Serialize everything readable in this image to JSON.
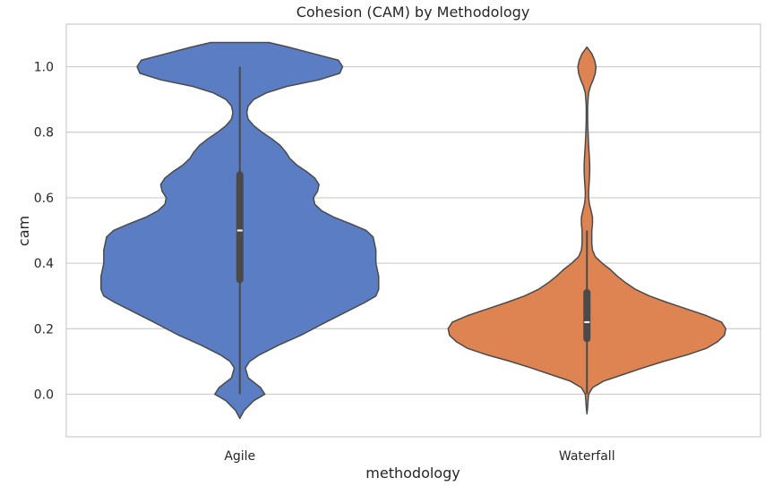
{
  "chart_data": {
    "type": "violin",
    "title": "Cohesion (CAM) by Methodology",
    "xlabel": "methodology",
    "ylabel": "cam",
    "categories": [
      "Agile",
      "Waterfall"
    ],
    "ylim": [
      -0.13,
      1.13
    ],
    "yticks": [
      0.0,
      0.2,
      0.4,
      0.6,
      0.8,
      1.0
    ],
    "ytick_labels": [
      "0.0",
      "0.2",
      "0.4",
      "0.6",
      "0.8",
      "1.0"
    ],
    "grid": "horizontal",
    "series": [
      {
        "category": "Agile",
        "color": "#5a7dc3",
        "y_min_extent": -0.074,
        "y_max_extent": 1.074,
        "whisker": [
          0.0,
          1.0
        ],
        "q1": 0.35,
        "median": 0.5,
        "q3": 0.67,
        "density": [
          [
            -0.074,
            0.0
          ],
          [
            -0.05,
            0.03
          ],
          [
            -0.02,
            0.1
          ],
          [
            0.0,
            0.18
          ],
          [
            0.02,
            0.15
          ],
          [
            0.05,
            0.06
          ],
          [
            0.08,
            0.04
          ],
          [
            0.1,
            0.07
          ],
          [
            0.12,
            0.14
          ],
          [
            0.15,
            0.28
          ],
          [
            0.18,
            0.44
          ],
          [
            0.2,
            0.53
          ],
          [
            0.22,
            0.62
          ],
          [
            0.25,
            0.76
          ],
          [
            0.28,
            0.9
          ],
          [
            0.3,
            0.98
          ],
          [
            0.32,
            1.0
          ],
          [
            0.34,
            1.0
          ],
          [
            0.36,
            1.0
          ],
          [
            0.38,
            0.99
          ],
          [
            0.4,
            0.98
          ],
          [
            0.42,
            0.98
          ],
          [
            0.44,
            0.98
          ],
          [
            0.46,
            0.97
          ],
          [
            0.48,
            0.96
          ],
          [
            0.5,
            0.91
          ],
          [
            0.52,
            0.8
          ],
          [
            0.54,
            0.68
          ],
          [
            0.56,
            0.59
          ],
          [
            0.58,
            0.54
          ],
          [
            0.6,
            0.53
          ],
          [
            0.62,
            0.56
          ],
          [
            0.64,
            0.57
          ],
          [
            0.66,
            0.54
          ],
          [
            0.68,
            0.48
          ],
          [
            0.7,
            0.41
          ],
          [
            0.72,
            0.36
          ],
          [
            0.74,
            0.33
          ],
          [
            0.76,
            0.29
          ],
          [
            0.78,
            0.23
          ],
          [
            0.8,
            0.16
          ],
          [
            0.82,
            0.1
          ],
          [
            0.84,
            0.06
          ],
          [
            0.86,
            0.05
          ],
          [
            0.88,
            0.06
          ],
          [
            0.9,
            0.1
          ],
          [
            0.92,
            0.19
          ],
          [
            0.94,
            0.34
          ],
          [
            0.96,
            0.57
          ],
          [
            0.98,
            0.72
          ],
          [
            1.0,
            0.74
          ],
          [
            1.02,
            0.71
          ],
          [
            1.04,
            0.53
          ],
          [
            1.06,
            0.35
          ],
          [
            1.074,
            0.21
          ]
        ]
      },
      {
        "category": "Waterfall",
        "color": "#dd8452",
        "y_min_extent": -0.06,
        "y_max_extent": 1.06,
        "whisker": [
          0.0,
          0.5
        ],
        "q1": 0.17,
        "median": 0.22,
        "q3": 0.31,
        "density": [
          [
            -0.06,
            0.0
          ],
          [
            -0.04,
            0.005
          ],
          [
            -0.02,
            0.008
          ],
          [
            0.0,
            0.012
          ],
          [
            0.02,
            0.04
          ],
          [
            0.04,
            0.12
          ],
          [
            0.06,
            0.26
          ],
          [
            0.08,
            0.4
          ],
          [
            0.1,
            0.55
          ],
          [
            0.12,
            0.72
          ],
          [
            0.14,
            0.86
          ],
          [
            0.16,
            0.94
          ],
          [
            0.18,
            0.99
          ],
          [
            0.2,
            1.0
          ],
          [
            0.22,
            0.97
          ],
          [
            0.24,
            0.86
          ],
          [
            0.26,
            0.72
          ],
          [
            0.28,
            0.58
          ],
          [
            0.3,
            0.45
          ],
          [
            0.32,
            0.35
          ],
          [
            0.34,
            0.28
          ],
          [
            0.36,
            0.22
          ],
          [
            0.38,
            0.17
          ],
          [
            0.4,
            0.11
          ],
          [
            0.42,
            0.06
          ],
          [
            0.44,
            0.04
          ],
          [
            0.46,
            0.035
          ],
          [
            0.48,
            0.035
          ],
          [
            0.5,
            0.035
          ],
          [
            0.52,
            0.04
          ],
          [
            0.54,
            0.04
          ],
          [
            0.56,
            0.03
          ],
          [
            0.58,
            0.018
          ],
          [
            0.6,
            0.012
          ],
          [
            0.62,
            0.012
          ],
          [
            0.64,
            0.015
          ],
          [
            0.66,
            0.018
          ],
          [
            0.68,
            0.02
          ],
          [
            0.7,
            0.02
          ],
          [
            0.72,
            0.018
          ],
          [
            0.74,
            0.015
          ],
          [
            0.76,
            0.012
          ],
          [
            0.78,
            0.01
          ],
          [
            0.8,
            0.008
          ],
          [
            0.82,
            0.006
          ],
          [
            0.84,
            0.005
          ],
          [
            0.86,
            0.005
          ],
          [
            0.88,
            0.005
          ],
          [
            0.9,
            0.008
          ],
          [
            0.92,
            0.012
          ],
          [
            0.94,
            0.025
          ],
          [
            0.96,
            0.045
          ],
          [
            0.98,
            0.06
          ],
          [
            1.0,
            0.065
          ],
          [
            1.02,
            0.055
          ],
          [
            1.04,
            0.035
          ],
          [
            1.06,
            0.0
          ]
        ]
      }
    ]
  }
}
